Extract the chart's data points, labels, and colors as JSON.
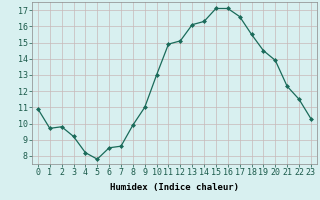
{
  "x": [
    0,
    1,
    2,
    3,
    4,
    5,
    6,
    7,
    8,
    9,
    10,
    11,
    12,
    13,
    14,
    15,
    16,
    17,
    18,
    19,
    20,
    21,
    22,
    23
  ],
  "y": [
    10.9,
    9.7,
    9.8,
    9.2,
    8.2,
    7.8,
    8.5,
    8.6,
    9.9,
    11.0,
    13.0,
    14.9,
    15.1,
    16.1,
    16.3,
    17.1,
    17.1,
    16.6,
    15.5,
    14.5,
    13.9,
    12.3,
    11.5,
    10.3
  ],
  "line_color": "#1a6b5a",
  "marker": "D",
  "marker_size": 2.0,
  "bg_color": "#d8f0f0",
  "grid_color": "#c8b8b8",
  "xlabel": "Humidex (Indice chaleur)",
  "ylim": [
    7.5,
    17.5
  ],
  "xlim": [
    -0.5,
    23.5
  ],
  "yticks": [
    8,
    9,
    10,
    11,
    12,
    13,
    14,
    15,
    16,
    17
  ],
  "xtick_labels": [
    "0",
    "1",
    "2",
    "3",
    "4",
    "5",
    "6",
    "7",
    "8",
    "9",
    "10",
    "11",
    "12",
    "13",
    "14",
    "15",
    "16",
    "17",
    "18",
    "19",
    "20",
    "21",
    "22",
    "23"
  ],
  "label_fontsize": 6.5,
  "tick_fontsize": 6.0
}
